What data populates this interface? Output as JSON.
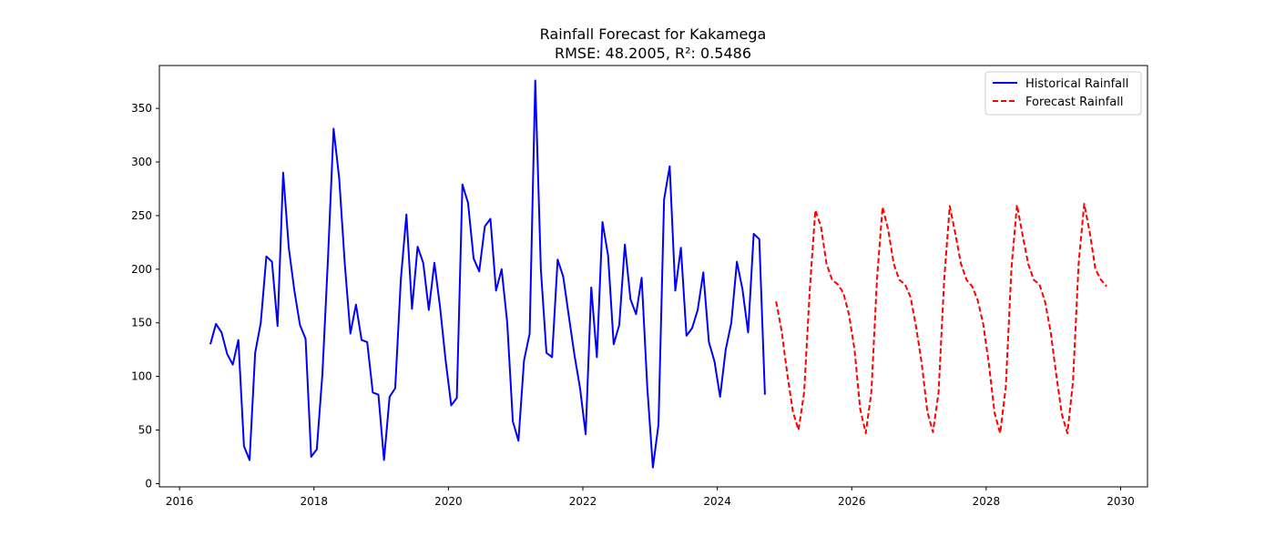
{
  "chart_data": {
    "type": "line",
    "title": "Rainfall Forecast for Kakamega",
    "subtitle": "RMSE: 48.2005, R²: 0.5486",
    "xlabel": "",
    "ylabel": "",
    "xlim": [
      2015.7,
      2030.4
    ],
    "ylim": [
      -3,
      390
    ],
    "x_ticks": [
      2016,
      2018,
      2020,
      2022,
      2024,
      2026,
      2028,
      2030
    ],
    "y_ticks": [
      0,
      50,
      100,
      150,
      200,
      250,
      300,
      350
    ],
    "grid": false,
    "legend_position": "top-right",
    "series": [
      {
        "name": "Historical Rainfall",
        "color": "#0000ff",
        "style": "solid",
        "start": "2016-06",
        "values": [
          130,
          149,
          141,
          121,
          111,
          134,
          35,
          22,
          122,
          150,
          212,
          207,
          147,
          290,
          220,
          180,
          148,
          135,
          25,
          32,
          102,
          210,
          331,
          285,
          205,
          140,
          167,
          134,
          132,
          85,
          83,
          22,
          81,
          89,
          190,
          251,
          163,
          221,
          206,
          162,
          206,
          165,
          115,
          73,
          80,
          279,
          262,
          210,
          198,
          240,
          247,
          180,
          200,
          150,
          58,
          40,
          115,
          140,
          376,
          200,
          122,
          118,
          209,
          193,
          156,
          120,
          89,
          46,
          183,
          118,
          244,
          213,
          130,
          148,
          223,
          172,
          158,
          192,
          90,
          15,
          55,
          265,
          296,
          180,
          220,
          138,
          145,
          162,
          197,
          132,
          114,
          81,
          125,
          150,
          207,
          181,
          141,
          233,
          228,
          83
        ]
      },
      {
        "name": "Forecast Rainfall",
        "color": "#ff0000",
        "style": "dashed",
        "start": "2024-11",
        "values": [
          170,
          142,
          102,
          67,
          50,
          85,
          180,
          255,
          240,
          205,
          190,
          186,
          178,
          158,
          125,
          70,
          47,
          85,
          190,
          258,
          237,
          205,
          190,
          186,
          174,
          146,
          112,
          67,
          48,
          85,
          190,
          259,
          233,
          205,
          190,
          184,
          171,
          148,
          111,
          66,
          47,
          90,
          200,
          260,
          232,
          205,
          190,
          186,
          170,
          142,
          102,
          65,
          47,
          95,
          205,
          261,
          234,
          200,
          190,
          184
        ]
      }
    ]
  }
}
